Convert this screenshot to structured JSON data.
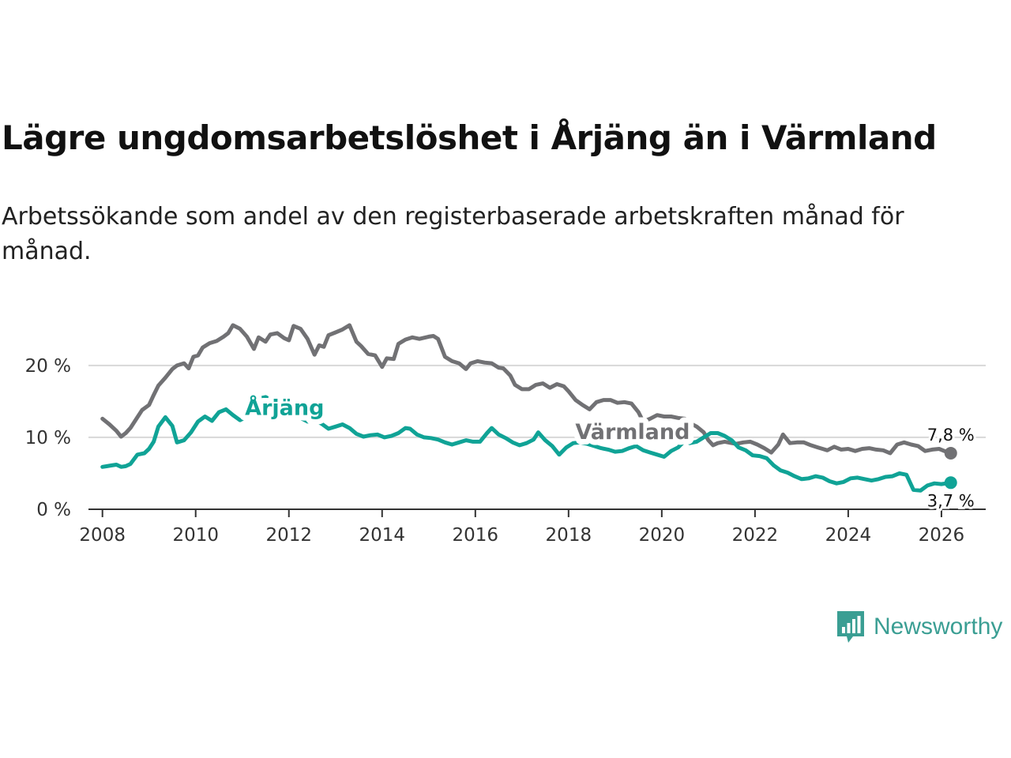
{
  "colors": {
    "arjang": "#10a396",
    "varmland": "#717174",
    "grid": "#d8d8d8",
    "axis": "#333333",
    "brand": "#3a9e93"
  },
  "brand": {
    "name": "Newsworthy",
    "icon": "bar-chart-speech-bubble-icon"
  },
  "chart_data": {
    "type": "line",
    "title": "Lägre ungdomsarbetslöshet i Årjäng än i Värmland",
    "subtitle": "Arbetssökande som andel av den registerbaserade arbetskraften månad för månad.",
    "xlabel": "",
    "ylabel": "",
    "xlim": [
      2007.7,
      2026.95
    ],
    "ylim": [
      0,
      28
    ],
    "grid": true,
    "x_ticks": [
      {
        "value": 2008,
        "label": "2008"
      },
      {
        "value": 2010,
        "label": "2010"
      },
      {
        "value": 2012,
        "label": "2012"
      },
      {
        "value": 2014,
        "label": "2014"
      },
      {
        "value": 2016,
        "label": "2016"
      },
      {
        "value": 2018,
        "label": "2018"
      },
      {
        "value": 2020,
        "label": "2020"
      },
      {
        "value": 2022,
        "label": "2022"
      },
      {
        "value": 2024,
        "label": "2024"
      },
      {
        "value": 2026,
        "label": "2026"
      }
    ],
    "y_ticks": [
      {
        "value": 0,
        "label": "0 %"
      },
      {
        "value": 10,
        "label": "10 %"
      },
      {
        "value": 20,
        "label": "20 %"
      }
    ],
    "series": [
      {
        "name": "Värmland",
        "label": "Värmland",
        "end_label": "7,8 %",
        "color": "#717174",
        "points": [
          [
            2008.0,
            12.6
          ],
          [
            2008.15,
            11.8
          ],
          [
            2008.3,
            10.9
          ],
          [
            2008.4,
            10.1
          ],
          [
            2008.5,
            10.6
          ],
          [
            2008.6,
            11.3
          ],
          [
            2008.75,
            12.8
          ],
          [
            2008.85,
            13.8
          ],
          [
            2009.0,
            14.5
          ],
          [
            2009.1,
            15.9
          ],
          [
            2009.2,
            17.2
          ],
          [
            2009.35,
            18.3
          ],
          [
            2009.5,
            19.5
          ],
          [
            2009.6,
            20.0
          ],
          [
            2009.75,
            20.3
          ],
          [
            2009.85,
            19.6
          ],
          [
            2009.95,
            21.2
          ],
          [
            2010.05,
            21.4
          ],
          [
            2010.15,
            22.5
          ],
          [
            2010.3,
            23.1
          ],
          [
            2010.45,
            23.4
          ],
          [
            2010.6,
            24.0
          ],
          [
            2010.7,
            24.5
          ],
          [
            2010.8,
            25.6
          ],
          [
            2010.95,
            25.1
          ],
          [
            2011.1,
            24.0
          ],
          [
            2011.25,
            22.3
          ],
          [
            2011.35,
            23.9
          ],
          [
            2011.5,
            23.3
          ],
          [
            2011.6,
            24.3
          ],
          [
            2011.75,
            24.5
          ],
          [
            2011.9,
            23.8
          ],
          [
            2012.0,
            23.5
          ],
          [
            2012.1,
            25.5
          ],
          [
            2012.25,
            25.1
          ],
          [
            2012.4,
            23.7
          ],
          [
            2012.55,
            21.5
          ],
          [
            2012.65,
            22.8
          ],
          [
            2012.75,
            22.6
          ],
          [
            2012.85,
            24.2
          ],
          [
            2013.0,
            24.6
          ],
          [
            2013.15,
            25.0
          ],
          [
            2013.3,
            25.6
          ],
          [
            2013.45,
            23.3
          ],
          [
            2013.55,
            22.7
          ],
          [
            2013.7,
            21.6
          ],
          [
            2013.85,
            21.4
          ],
          [
            2014.0,
            19.8
          ],
          [
            2014.1,
            21.0
          ],
          [
            2014.25,
            20.9
          ],
          [
            2014.35,
            23.0
          ],
          [
            2014.5,
            23.6
          ],
          [
            2014.65,
            23.9
          ],
          [
            2014.8,
            23.7
          ],
          [
            2015.0,
            24.0
          ],
          [
            2015.1,
            24.1
          ],
          [
            2015.2,
            23.7
          ],
          [
            2015.35,
            21.2
          ],
          [
            2015.5,
            20.6
          ],
          [
            2015.65,
            20.3
          ],
          [
            2015.8,
            19.5
          ],
          [
            2015.9,
            20.3
          ],
          [
            2016.05,
            20.6
          ],
          [
            2016.2,
            20.4
          ],
          [
            2016.35,
            20.3
          ],
          [
            2016.5,
            19.7
          ],
          [
            2016.6,
            19.6
          ],
          [
            2016.75,
            18.6
          ],
          [
            2016.85,
            17.3
          ],
          [
            2017.0,
            16.7
          ],
          [
            2017.15,
            16.7
          ],
          [
            2017.3,
            17.3
          ],
          [
            2017.45,
            17.5
          ],
          [
            2017.6,
            16.9
          ],
          [
            2017.75,
            17.4
          ],
          [
            2017.9,
            17.1
          ],
          [
            2018.0,
            16.4
          ],
          [
            2018.15,
            15.2
          ],
          [
            2018.3,
            14.5
          ],
          [
            2018.45,
            13.9
          ],
          [
            2018.6,
            14.9
          ],
          [
            2018.75,
            15.2
          ],
          [
            2018.9,
            15.2
          ],
          [
            2019.05,
            14.8
          ],
          [
            2019.2,
            14.9
          ],
          [
            2019.35,
            14.7
          ],
          [
            2019.5,
            13.5
          ],
          [
            2019.6,
            12.2
          ],
          [
            2019.75,
            12.6
          ],
          [
            2019.9,
            13.1
          ],
          [
            2020.05,
            12.9
          ],
          [
            2020.2,
            12.9
          ],
          [
            2020.35,
            12.7
          ],
          [
            2020.5,
            12.6
          ],
          [
            2020.6,
            12.0
          ],
          [
            2020.75,
            11.5
          ],
          [
            2020.9,
            10.7
          ],
          [
            2021.0,
            9.6
          ],
          [
            2021.1,
            8.9
          ],
          [
            2021.2,
            9.2
          ],
          [
            2021.35,
            9.4
          ],
          [
            2021.5,
            9.2
          ],
          [
            2021.6,
            9.1
          ],
          [
            2021.75,
            9.3
          ],
          [
            2021.9,
            9.4
          ],
          [
            2022.05,
            9.0
          ],
          [
            2022.2,
            8.5
          ],
          [
            2022.35,
            7.9
          ],
          [
            2022.5,
            9.0
          ],
          [
            2022.6,
            10.4
          ],
          [
            2022.75,
            9.2
          ],
          [
            2022.9,
            9.3
          ],
          [
            2023.05,
            9.3
          ],
          [
            2023.2,
            8.9
          ],
          [
            2023.35,
            8.6
          ],
          [
            2023.45,
            8.4
          ],
          [
            2023.55,
            8.2
          ],
          [
            2023.7,
            8.7
          ],
          [
            2023.85,
            8.3
          ],
          [
            2024.0,
            8.4
          ],
          [
            2024.15,
            8.1
          ],
          [
            2024.3,
            8.4
          ],
          [
            2024.45,
            8.5
          ],
          [
            2024.6,
            8.3
          ],
          [
            2024.75,
            8.2
          ],
          [
            2024.9,
            7.8
          ],
          [
            2025.05,
            9.0
          ],
          [
            2025.2,
            9.3
          ],
          [
            2025.35,
            9.0
          ],
          [
            2025.5,
            8.8
          ],
          [
            2025.65,
            8.1
          ],
          [
            2025.8,
            8.3
          ],
          [
            2025.95,
            8.4
          ],
          [
            2026.1,
            8.0
          ],
          [
            2026.2,
            7.8
          ]
        ]
      },
      {
        "name": "Årjäng",
        "label": "Årjäng",
        "end_label": "3,7 %",
        "color": "#10a396",
        "points": [
          [
            2008.0,
            5.9
          ],
          [
            2008.1,
            6.0
          ],
          [
            2008.2,
            6.1
          ],
          [
            2008.3,
            6.2
          ],
          [
            2008.4,
            5.9
          ],
          [
            2008.5,
            6.0
          ],
          [
            2008.6,
            6.3
          ],
          [
            2008.75,
            7.6
          ],
          [
            2008.9,
            7.8
          ],
          [
            2009.0,
            8.4
          ],
          [
            2009.1,
            9.4
          ],
          [
            2009.2,
            11.5
          ],
          [
            2009.35,
            12.8
          ],
          [
            2009.5,
            11.6
          ],
          [
            2009.6,
            9.3
          ],
          [
            2009.75,
            9.6
          ],
          [
            2009.9,
            10.7
          ],
          [
            2010.05,
            12.2
          ],
          [
            2010.2,
            12.9
          ],
          [
            2010.35,
            12.3
          ],
          [
            2010.5,
            13.5
          ],
          [
            2010.65,
            13.9
          ],
          [
            2010.8,
            13.1
          ],
          [
            2010.95,
            12.4
          ],
          [
            2011.1,
            12.9
          ],
          [
            2011.25,
            14.8
          ],
          [
            2011.35,
            15.4
          ],
          [
            2011.5,
            15.6
          ],
          [
            2011.65,
            15.1
          ],
          [
            2011.8,
            14.5
          ],
          [
            2011.95,
            13.6
          ],
          [
            2012.1,
            13.3
          ],
          [
            2012.25,
            12.7
          ],
          [
            2012.4,
            12.2
          ],
          [
            2012.55,
            12.4
          ],
          [
            2012.7,
            11.9
          ],
          [
            2012.85,
            11.2
          ],
          [
            2013.0,
            11.5
          ],
          [
            2013.15,
            11.8
          ],
          [
            2013.3,
            11.3
          ],
          [
            2013.45,
            10.5
          ],
          [
            2013.6,
            10.1
          ],
          [
            2013.75,
            10.3
          ],
          [
            2013.9,
            10.4
          ],
          [
            2014.05,
            10.0
          ],
          [
            2014.2,
            10.2
          ],
          [
            2014.35,
            10.6
          ],
          [
            2014.5,
            11.3
          ],
          [
            2014.6,
            11.2
          ],
          [
            2014.75,
            10.4
          ],
          [
            2014.9,
            10.0
          ],
          [
            2015.05,
            9.9
          ],
          [
            2015.2,
            9.7
          ],
          [
            2015.35,
            9.3
          ],
          [
            2015.5,
            9.0
          ],
          [
            2015.65,
            9.3
          ],
          [
            2015.8,
            9.6
          ],
          [
            2015.95,
            9.4
          ],
          [
            2016.1,
            9.4
          ],
          [
            2016.25,
            10.6
          ],
          [
            2016.35,
            11.3
          ],
          [
            2016.5,
            10.4
          ],
          [
            2016.65,
            9.9
          ],
          [
            2016.8,
            9.3
          ],
          [
            2016.95,
            8.9
          ],
          [
            2017.1,
            9.2
          ],
          [
            2017.25,
            9.7
          ],
          [
            2017.35,
            10.7
          ],
          [
            2017.5,
            9.6
          ],
          [
            2017.65,
            8.8
          ],
          [
            2017.8,
            7.6
          ],
          [
            2017.95,
            8.6
          ],
          [
            2018.1,
            9.2
          ],
          [
            2018.25,
            9.3
          ],
          [
            2018.4,
            9.1
          ],
          [
            2018.55,
            8.8
          ],
          [
            2018.7,
            8.5
          ],
          [
            2018.85,
            8.3
          ],
          [
            2019.0,
            8.0
          ],
          [
            2019.15,
            8.1
          ],
          [
            2019.3,
            8.5
          ],
          [
            2019.45,
            8.8
          ],
          [
            2019.6,
            8.2
          ],
          [
            2019.75,
            7.9
          ],
          [
            2019.9,
            7.6
          ],
          [
            2020.05,
            7.3
          ],
          [
            2020.2,
            8.1
          ],
          [
            2020.35,
            8.6
          ],
          [
            2020.5,
            9.6
          ],
          [
            2020.6,
            9.2
          ],
          [
            2020.75,
            9.4
          ],
          [
            2020.9,
            10.0
          ],
          [
            2021.05,
            10.6
          ],
          [
            2021.2,
            10.6
          ],
          [
            2021.35,
            10.2
          ],
          [
            2021.5,
            9.6
          ],
          [
            2021.65,
            8.6
          ],
          [
            2021.8,
            8.2
          ],
          [
            2021.95,
            7.5
          ],
          [
            2022.1,
            7.4
          ],
          [
            2022.25,
            7.1
          ],
          [
            2022.4,
            6.1
          ],
          [
            2022.55,
            5.4
          ],
          [
            2022.7,
            5.1
          ],
          [
            2022.85,
            4.6
          ],
          [
            2023.0,
            4.2
          ],
          [
            2023.15,
            4.3
          ],
          [
            2023.3,
            4.6
          ],
          [
            2023.45,
            4.4
          ],
          [
            2023.6,
            3.9
          ],
          [
            2023.75,
            3.6
          ],
          [
            2023.9,
            3.8
          ],
          [
            2024.05,
            4.3
          ],
          [
            2024.2,
            4.4
          ],
          [
            2024.35,
            4.2
          ],
          [
            2024.5,
            4.0
          ],
          [
            2024.65,
            4.2
          ],
          [
            2024.8,
            4.5
          ],
          [
            2024.95,
            4.6
          ],
          [
            2025.1,
            5.0
          ],
          [
            2025.25,
            4.8
          ],
          [
            2025.4,
            2.7
          ],
          [
            2025.55,
            2.6
          ],
          [
            2025.7,
            3.3
          ],
          [
            2025.85,
            3.6
          ],
          [
            2026.0,
            3.5
          ],
          [
            2026.1,
            3.6
          ],
          [
            2026.2,
            3.7
          ]
        ]
      }
    ]
  }
}
